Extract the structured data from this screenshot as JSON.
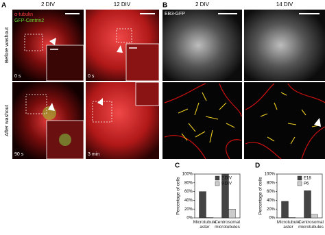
{
  "panel_a": {
    "letter": "A",
    "columns": [
      "2 DIV",
      "12 DIV"
    ],
    "rows": [
      "Before washout",
      "After washout"
    ],
    "stain_labels": [
      "α-tubulin",
      "GFP-Centrin2"
    ],
    "timestamps": [
      "0 s",
      "0 s",
      "90 s",
      "3 min"
    ]
  },
  "panel_b": {
    "letter": "B",
    "columns": [
      "2 DIV",
      "14 DIV"
    ],
    "marker_label": "EB3-GFP"
  },
  "chart_data": [
    {
      "type": "bar",
      "panel": "C",
      "ylabel": "Percentage of cells",
      "categories": [
        "Microtubule aster",
        "Centrosomal microtubules"
      ],
      "series": [
        {
          "name": "2 DIV",
          "color": "#444444",
          "values": [
            60,
            100
          ]
        },
        {
          "name": "9 DIV",
          "color": "#cccccc",
          "values": [
            1,
            20
          ]
        }
      ],
      "ylim": [
        0,
        100
      ],
      "yticks": [
        {
          "value": 0,
          "label": "0%"
        },
        {
          "value": 20,
          "label": "20%"
        },
        {
          "value": 40,
          "label": "40%"
        },
        {
          "value": 60,
          "label": "60%"
        },
        {
          "value": 80,
          "label": "80%"
        },
        {
          "value": 100,
          "label": "100%"
        }
      ]
    },
    {
      "type": "bar",
      "panel": "D",
      "ylabel": "Percentage of cells",
      "categories": [
        "Microtubule aster",
        "Centrosomal microtubules"
      ],
      "series": [
        {
          "name": "E18",
          "color": "#444444",
          "values": [
            38,
            62
          ]
        },
        {
          "name": "P6",
          "color": "#cccccc",
          "values": [
            1,
            8
          ]
        }
      ],
      "ylim": [
        0,
        100
      ],
      "yticks": [
        {
          "value": 0,
          "label": "0%"
        },
        {
          "value": 20,
          "label": "20%"
        },
        {
          "value": 40,
          "label": "40%"
        },
        {
          "value": 60,
          "label": "60%"
        },
        {
          "value": 80,
          "label": "80%"
        },
        {
          "value": 100,
          "label": "100%"
        }
      ]
    }
  ]
}
